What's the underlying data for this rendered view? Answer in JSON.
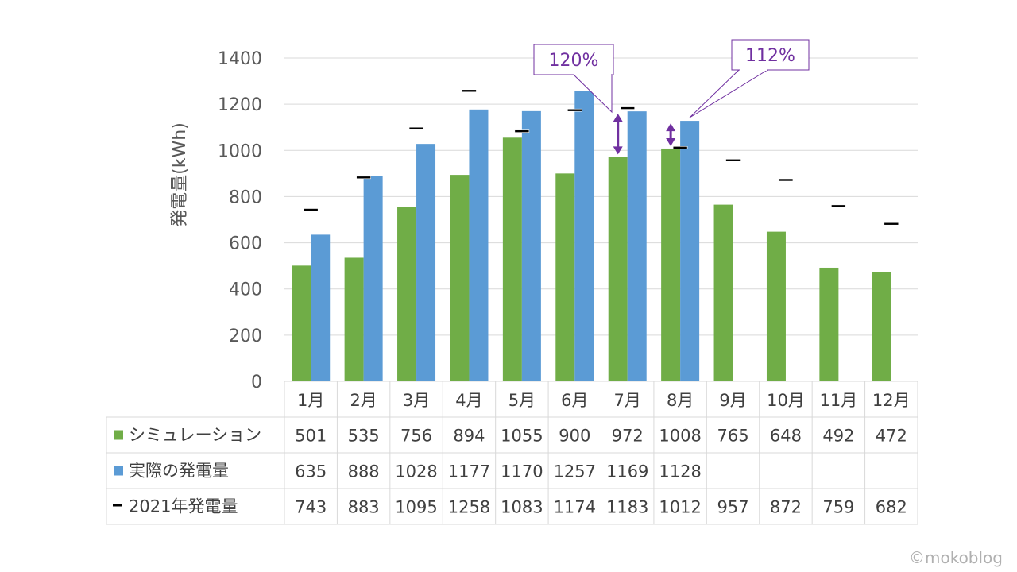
{
  "chart_data": {
    "type": "bar",
    "ylabel": "発電量(kWh)",
    "ylim": [
      0,
      1400
    ],
    "yticks": [
      "0",
      "200",
      "400",
      "600",
      "800",
      "1000",
      "1200",
      "1400"
    ],
    "categories": [
      "1月",
      "2月",
      "3月",
      "4月",
      "5月",
      "6月",
      "7月",
      "8月",
      "9月",
      "10月",
      "11月",
      "12月"
    ],
    "series": [
      {
        "name": "シミュレーション",
        "kind": "bar",
        "color": "#70ad47",
        "values": [
          501,
          535,
          756,
          894,
          1055,
          900,
          972,
          1008,
          765,
          648,
          492,
          472
        ]
      },
      {
        "name": "実際の発電量",
        "kind": "bar",
        "color": "#5b9bd5",
        "values": [
          635,
          888,
          1028,
          1177,
          1170,
          1257,
          1169,
          1128,
          null,
          null,
          null,
          null
        ]
      },
      {
        "name": "2021年発電量",
        "kind": "marker",
        "color": "#000000",
        "values": [
          743,
          883,
          1095,
          1258,
          1083,
          1174,
          1183,
          1012,
          957,
          872,
          759,
          682
        ]
      }
    ],
    "annotations": [
      {
        "text": "120%",
        "month_index": 6,
        "color": "#7030a0"
      },
      {
        "text": "112%",
        "month_index": 7,
        "color": "#7030a0"
      }
    ]
  },
  "watermark": "©mokoblog"
}
